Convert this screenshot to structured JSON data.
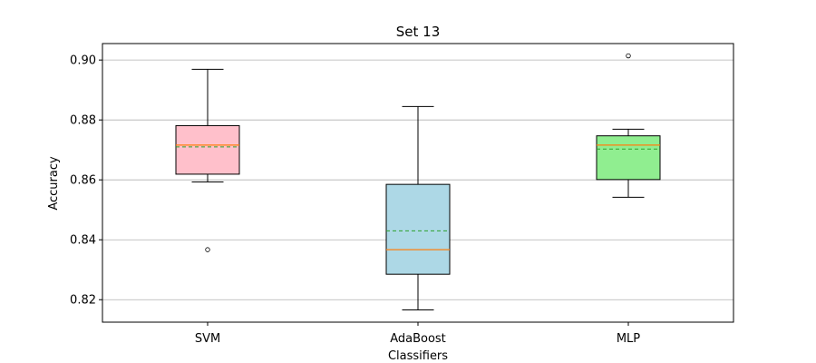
{
  "chart_data": {
    "type": "box",
    "title": "Set 13",
    "xlabel": "Classifiers",
    "ylabel": "Accuracy",
    "ylim": [
      0.8125,
      0.9055
    ],
    "yticks": [
      0.82,
      0.84,
      0.86,
      0.88,
      0.9
    ],
    "ytick_labels": [
      "0.82",
      "0.84",
      "0.86",
      "0.88",
      "0.90"
    ],
    "grid": "y",
    "categories": [
      "SVM",
      "AdaBoost",
      "MLP"
    ],
    "boxes": [
      {
        "name": "SVM",
        "color": "#ffc0cb",
        "whisker_low": 0.8593,
        "q1": 0.8619,
        "median": 0.8716,
        "mean": 0.871,
        "q3": 0.8781,
        "whisker_high": 0.8969,
        "outliers": [
          0.8367
        ]
      },
      {
        "name": "AdaBoost",
        "color": "#add8e6",
        "whisker_low": 0.8166,
        "q1": 0.8285,
        "median": 0.8367,
        "mean": 0.843,
        "q3": 0.8585,
        "whisker_high": 0.8845,
        "outliers": []
      },
      {
        "name": "MLP",
        "color": "#90ee90",
        "whisker_low": 0.8542,
        "q1": 0.8601,
        "median": 0.8716,
        "mean": 0.8703,
        "q3": 0.8747,
        "whisker_high": 0.8769,
        "outliers": [
          0.9014
        ]
      }
    ],
    "median_color": "#ff7f0e",
    "mean_color": "#2ca02c"
  }
}
